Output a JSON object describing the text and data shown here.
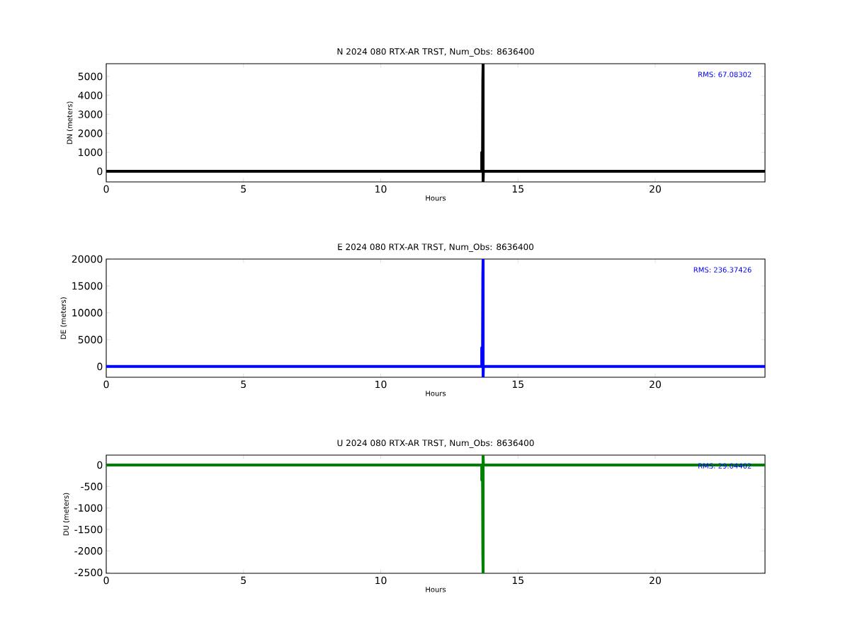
{
  "chart_data": [
    {
      "type": "line",
      "title": "N 2024 080 RTX-AR  TRST, Num_Obs: 8636400",
      "xlabel": "Hours",
      "ylabel": "DN (meters)",
      "annotations": [
        "RMS: 67.08302"
      ],
      "x": [
        0,
        13.68,
        13.68,
        13.71,
        13.72,
        13.73,
        13.73,
        13.74,
        24
      ],
      "series": [
        {
          "color": "#000000",
          "values": [
            0,
            0,
            1000,
            1000,
            4800,
            5670,
            -560,
            0,
            0
          ]
        }
      ],
      "xlim": [
        0,
        24
      ],
      "xticks": [
        0,
        5,
        10,
        15,
        20
      ],
      "ylim": [
        -560,
        5670
      ],
      "yticks": [
        0,
        1000,
        2000,
        3000,
        4000,
        5000
      ],
      "line_style": "solid"
    },
    {
      "type": "line",
      "title": "E 2024 080 RTX-AR  TRST, Num_Obs: 8636400",
      "xlabel": "Hours",
      "ylabel": "DE (meters)",
      "annotations": [
        "RMS: 236.37426"
      ],
      "x": [
        0,
        13.68,
        13.68,
        13.71,
        13.72,
        13.73,
        13.73,
        13.74,
        24
      ],
      "series": [
        {
          "color": "#0000ff",
          "values": [
            0,
            0,
            3500,
            3500,
            17000,
            20000,
            -2000,
            0,
            0
          ]
        }
      ],
      "xlim": [
        0,
        24
      ],
      "xticks": [
        0,
        5,
        10,
        15,
        20
      ],
      "ylim": [
        -2000,
        20000
      ],
      "yticks": [
        0,
        5000,
        10000,
        15000,
        20000
      ],
      "line_style": "solid"
    },
    {
      "type": "line",
      "title": "U 2024 080 RTX-AR  TRST, Num_Obs: 8636400",
      "xlabel": "Hours",
      "ylabel": "DU (meters)",
      "annotations": [
        "RMS: 29.04402"
      ],
      "x": [
        0,
        13.68,
        13.68,
        13.71,
        13.72,
        13.73,
        13.73,
        13.74,
        24
      ],
      "series": [
        {
          "color": "#008000",
          "values": [
            0,
            0,
            -350,
            -350,
            -2100,
            -2520,
            230,
            0,
            0
          ]
        }
      ],
      "xlim": [
        0,
        24
      ],
      "xticks": [
        0,
        5,
        10,
        15,
        20
      ],
      "ylim": [
        -2520,
        230
      ],
      "yticks": [
        -2500,
        -2000,
        -1500,
        -1000,
        -500,
        0
      ],
      "line_style": "solid"
    }
  ]
}
